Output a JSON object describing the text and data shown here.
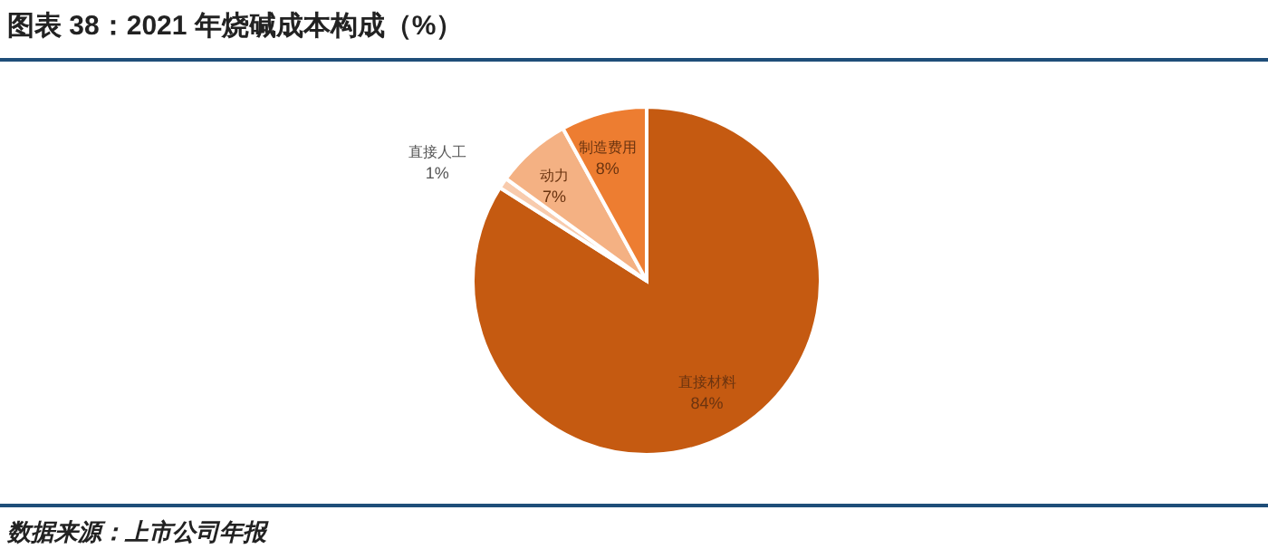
{
  "chart_data": {
    "type": "pie",
    "title": "图表 38：2021 年烧碱成本构成（%）",
    "categories": [
      "直接材料",
      "直接人工",
      "动力",
      "制造费用"
    ],
    "values": [
      84,
      1,
      7,
      8
    ],
    "value_labels": [
      "84%",
      "1%",
      "7%",
      "8%"
    ],
    "colors": [
      "#c55a11",
      "#f8cbad",
      "#f4b183",
      "#ed7d31"
    ],
    "annotations": [
      "数据来源：上市公司年报"
    ]
  }
}
